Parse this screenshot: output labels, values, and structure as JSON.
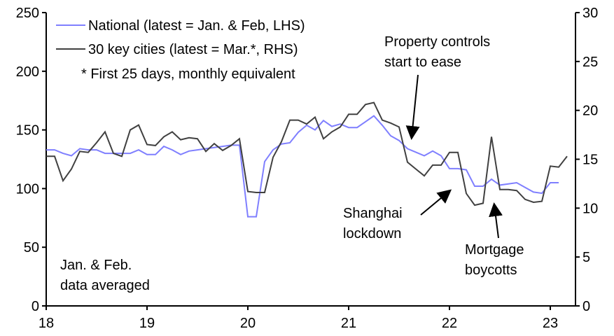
{
  "chart_data": {
    "type": "line",
    "x_start": "2018-01",
    "x_ticks": [
      "18",
      "19",
      "20",
      "21",
      "22",
      "23"
    ],
    "y_left": {
      "ylim": [
        0,
        250
      ],
      "ticks": [
        "0",
        "50",
        "100",
        "150",
        "200",
        "250"
      ]
    },
    "y_right": {
      "ylim": [
        0,
        30
      ],
      "ticks": [
        "0",
        "5",
        "10",
        "15",
        "20",
        "25",
        "30"
      ]
    },
    "series": [
      {
        "name": "National (latest = Jan. & Feb, LHS)",
        "axis": "left",
        "color": "#7f7fff",
        "values": [
          133,
          133,
          130,
          128,
          134,
          133,
          133,
          130,
          130,
          130,
          130,
          133,
          129,
          129,
          136,
          133,
          129,
          132,
          133,
          134,
          135,
          136,
          137,
          137,
          76,
          76,
          123,
          133,
          138,
          139,
          148,
          154,
          150,
          158,
          153,
          155,
          152,
          152,
          157,
          162,
          154,
          145,
          141,
          134,
          131,
          128,
          132,
          128,
          117,
          117,
          116,
          102,
          102,
          108,
          103,
          104,
          105,
          101,
          97,
          96,
          105,
          105
        ]
      },
      {
        "name": "30 key cities (latest = Mar.*, RHS)",
        "axis": "right",
        "color": "#404040",
        "values": [
          15.3,
          15.3,
          12.8,
          14.0,
          15.8,
          15.7,
          16.7,
          17.8,
          15.6,
          15.3,
          18.0,
          18.5,
          16.5,
          16.4,
          17.3,
          17.8,
          17.0,
          17.2,
          17.1,
          15.8,
          16.6,
          15.9,
          16.4,
          17.1,
          11.7,
          11.6,
          11.6,
          15.2,
          16.8,
          19.0,
          19.0,
          18.6,
          19.3,
          17.1,
          17.8,
          18.3,
          19.6,
          19.6,
          20.6,
          20.8,
          19.0,
          18.7,
          18.3,
          14.7,
          14.0,
          13.3,
          14.4,
          14.4,
          15.7,
          15.7,
          11.5,
          10.3,
          10.5,
          17.3,
          11.9,
          11.9,
          11.8,
          10.9,
          10.6,
          10.7,
          14.3,
          14.2,
          15.3
        ]
      }
    ],
    "legend_note": "* First 25 days, monthly equivalent",
    "annotations": {
      "property": [
        "Property controls",
        "start to ease"
      ],
      "shanghai": [
        "Shanghai",
        "lockdown"
      ],
      "mortgage": [
        "Mortgage",
        "boycotts"
      ],
      "janfeb": [
        "Jan. & Feb.",
        "data averaged"
      ]
    }
  }
}
